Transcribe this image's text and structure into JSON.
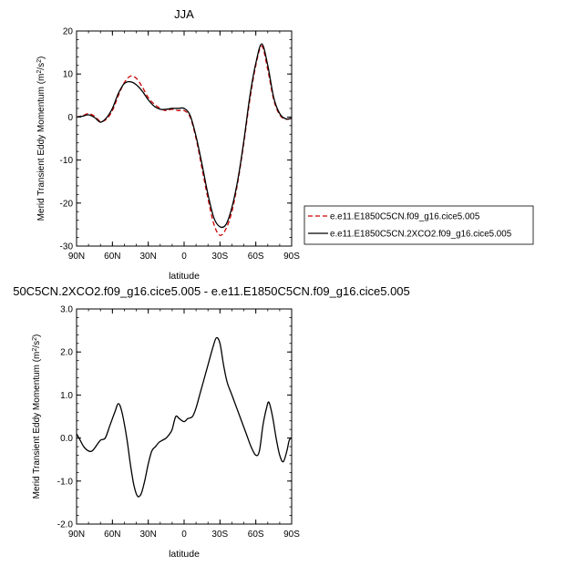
{
  "chart_data": [
    {
      "type": "line",
      "title": "JJA",
      "xlabel": "latitude",
      "ylabel": "Merid Transient Eddy Momentum (m",
      "ylabel_sup": "2",
      "ylabel_mid": "/s",
      "ylabel_sup2": "2",
      "ylabel_end": ")",
      "xlim": [
        90,
        -90
      ],
      "ylim": [
        -30,
        20
      ],
      "x_ticks": [
        90,
        60,
        30,
        0,
        -30,
        -60,
        -90
      ],
      "x_tick_labels": [
        "90N",
        "60N",
        "30N",
        "0",
        "30S",
        "60S",
        "90S"
      ],
      "y_ticks": [
        -30,
        -20,
        -10,
        0,
        10,
        20
      ],
      "y_tick_labels": [
        "-30",
        "-20",
        "-10",
        "0",
        "10",
        "20"
      ],
      "grid": false,
      "legend_position": "right",
      "series": [
        {
          "name": "e.e11.E1850C5CN.f09_g16.cice5.005",
          "color": "#cc0000",
          "dash": "dashed",
          "x": [
            90,
            85,
            80,
            75,
            70,
            65,
            60,
            55,
            50,
            45,
            40,
            35,
            30,
            25,
            20,
            15,
            10,
            5,
            0,
            -5,
            -10,
            -15,
            -20,
            -25,
            -30,
            -35,
            -40,
            -45,
            -50,
            -55,
            -60,
            -65,
            -70,
            -75,
            -80,
            -85,
            -90
          ],
          "y": [
            0,
            0.3,
            0.8,
            0.2,
            -1.0,
            -0.5,
            1.5,
            5.0,
            8.0,
            9.5,
            9.0,
            7.0,
            4.5,
            3.0,
            2.0,
            1.5,
            1.8,
            1.5,
            1.5,
            0,
            -5,
            -12,
            -19,
            -25,
            -27.5,
            -26,
            -22,
            -15,
            -6,
            4,
            12,
            16.5,
            11,
            4,
            0.5,
            -0.5,
            -0.3
          ]
        },
        {
          "name": "e.e11.E1850C5CN.2XCO2.f09_g16.cice5.005",
          "color": "#000000",
          "dash": "solid",
          "x": [
            90,
            85,
            80,
            75,
            70,
            65,
            60,
            55,
            50,
            45,
            40,
            35,
            30,
            25,
            20,
            15,
            10,
            5,
            0,
            -5,
            -10,
            -15,
            -20,
            -25,
            -30,
            -35,
            -40,
            -45,
            -50,
            -55,
            -60,
            -65,
            -70,
            -75,
            -80,
            -85,
            -90
          ],
          "y": [
            0,
            0.2,
            0.5,
            -0.1,
            -1.2,
            -0.2,
            2.0,
            5.5,
            7.8,
            8.2,
            7.5,
            6.0,
            4.0,
            2.5,
            1.8,
            1.8,
            2.0,
            2.0,
            2.0,
            0.4,
            -4.5,
            -11,
            -18,
            -23.5,
            -25.5,
            -25,
            -21,
            -14.5,
            -5.5,
            4.8,
            12.5,
            17,
            12,
            4.5,
            0.8,
            -0.4,
            -0.3
          ]
        }
      ]
    },
    {
      "type": "line",
      "title": "50C5CN.2XCO2.f09_g16.cice5.005 - e.e11.E1850C5CN.f09_g16.cice5.005",
      "xlabel": "latitude",
      "ylabel": "Merid Transient Eddy Momentum (m",
      "ylabel_sup": "2",
      "ylabel_mid": "/s",
      "ylabel_sup2": "2",
      "ylabel_end": ")",
      "xlim": [
        90,
        -90
      ],
      "ylim": [
        -2,
        3
      ],
      "x_ticks": [
        90,
        60,
        30,
        0,
        -30,
        -60,
        -90
      ],
      "x_tick_labels": [
        "90N",
        "60N",
        "30N",
        "0",
        "30S",
        "60S",
        "90S"
      ],
      "y_ticks": [
        -2,
        -1,
        0,
        1,
        2,
        3
      ],
      "y_tick_labels": [
        "-2.0",
        "-1.0",
        "0.0",
        "1.0",
        "2.0",
        "3.0"
      ],
      "grid": false,
      "series": [
        {
          "color": "#000000",
          "dash": "solid",
          "x": [
            90,
            87,
            84,
            80,
            77,
            74,
            70,
            66,
            62,
            58,
            55,
            52,
            48,
            45,
            42,
            39,
            36,
            33,
            30,
            27,
            24,
            21,
            18,
            15,
            12,
            10,
            7,
            4,
            0,
            -3,
            -7,
            -10,
            -13,
            -16,
            -20,
            -24,
            -27,
            -30,
            -33,
            -36,
            -40,
            -44,
            -48,
            -52,
            -56,
            -60,
            -63,
            -66,
            -69,
            -71,
            -74,
            -77,
            -80,
            -83,
            -86,
            -88,
            -90
          ],
          "y": [
            0.1,
            -0.05,
            -0.2,
            -0.3,
            -0.3,
            -0.2,
            -0.05,
            0.0,
            0.3,
            0.6,
            0.8,
            0.6,
            0.0,
            -0.6,
            -1.1,
            -1.35,
            -1.3,
            -1.0,
            -0.6,
            -0.3,
            -0.2,
            -0.1,
            -0.05,
            0.0,
            0.1,
            0.2,
            0.5,
            0.45,
            0.38,
            0.45,
            0.5,
            0.7,
            1.0,
            1.3,
            1.7,
            2.1,
            2.33,
            2.2,
            1.7,
            1.3,
            1.0,
            0.7,
            0.4,
            0.1,
            -0.2,
            -0.4,
            -0.3,
            0.3,
            0.7,
            0.83,
            0.5,
            0.0,
            -0.4,
            -0.55,
            -0.3,
            -0.05,
            0.0
          ]
        }
      ]
    }
  ]
}
